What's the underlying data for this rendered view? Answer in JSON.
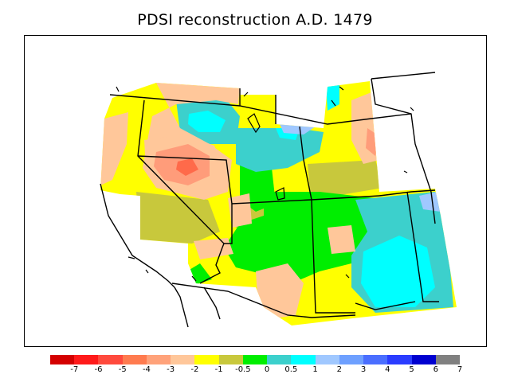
{
  "title": "PDSI reconstruction A.D. 1479",
  "legend": {
    "colors": [
      "#d40000",
      "#ff1a1a",
      "#ff4a3d",
      "#ff7b4f",
      "#ffa27a",
      "#ffc79a",
      "#ffff00",
      "#c8c83c",
      "#00ee00",
      "#3cd0cc",
      "#00ffff",
      "#a0c8ff",
      "#6ea0ff",
      "#4a6eff",
      "#2a3cff",
      "#0000d0",
      "#808080"
    ],
    "ticks": [
      "-7",
      "-6",
      "-5",
      "-4",
      "-3",
      "-2",
      "-1",
      "-0.5",
      "0",
      "0.5",
      "1",
      "2",
      "3",
      "4",
      "5",
      "6",
      "7"
    ]
  }
}
